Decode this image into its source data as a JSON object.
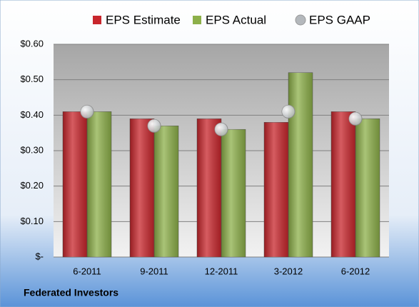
{
  "chart_data": {
    "type": "bar",
    "categories": [
      "6-2011",
      "9-2011",
      "12-2011",
      "3-2012",
      "6-2012"
    ],
    "series": [
      {
        "name": "EPS Estimate",
        "color": "#c8262c",
        "type": "bar",
        "values": [
          0.41,
          0.39,
          0.39,
          0.38,
          0.41
        ]
      },
      {
        "name": "EPS Actual",
        "color": "#8db04a",
        "type": "bar",
        "values": [
          0.41,
          0.37,
          0.36,
          0.52,
          0.39
        ]
      },
      {
        "name": "EPS GAAP",
        "color": "#b4b8bc",
        "type": "scatter",
        "values": [
          0.41,
          0.37,
          0.36,
          0.41,
          0.39
        ]
      }
    ],
    "ylim": [
      0,
      0.6
    ],
    "yticks": [
      {
        "value": 0,
        "label": "$-"
      },
      {
        "value": 0.1,
        "label": "$0.10"
      },
      {
        "value": 0.2,
        "label": "$0.20"
      },
      {
        "value": 0.3,
        "label": "$0.30"
      },
      {
        "value": 0.4,
        "label": "$0.40"
      },
      {
        "value": 0.5,
        "label": "$0.50"
      },
      {
        "value": 0.6,
        "label": "$0.60"
      }
    ],
    "grid": true,
    "legend": "top",
    "footer": "Federated Investors"
  }
}
